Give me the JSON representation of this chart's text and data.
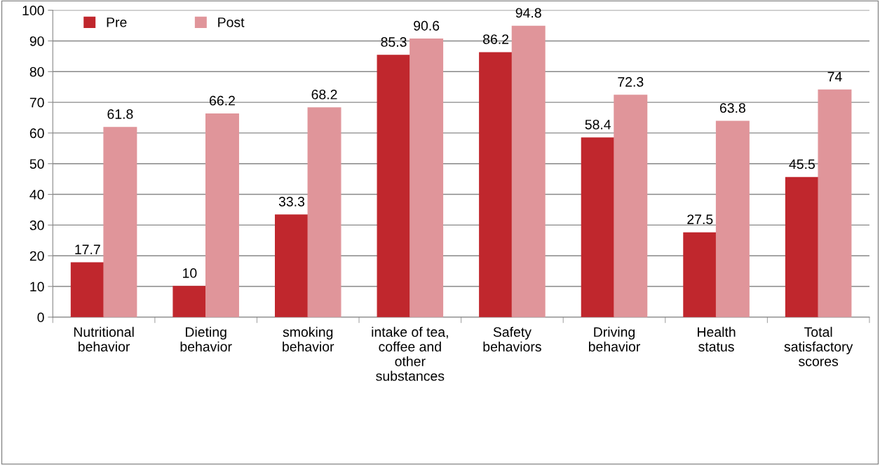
{
  "chart_data": {
    "type": "bar",
    "categories": [
      "Nutritional\nbehavior",
      "Dieting\nbehavior",
      "smoking\nbehavior",
      "intake of tea,\ncoffee and\nother\nsubstances",
      "Safety\nbehaviors",
      "Driving\nbehavior",
      "Health\nstatus",
      "Total\nsatisfactory\nscores"
    ],
    "series": [
      {
        "name": "Pre",
        "color": "#c0272d",
        "values": [
          17.7,
          10,
          33.3,
          85.3,
          86.2,
          58.4,
          27.5,
          45.5
        ]
      },
      {
        "name": "Post",
        "color": "#e0959a",
        "values": [
          61.8,
          66.2,
          68.2,
          90.6,
          94.8,
          72.3,
          63.8,
          74
        ]
      }
    ],
    "ylim": [
      0,
      100
    ],
    "yticks": [
      0,
      10,
      20,
      30,
      40,
      50,
      60,
      70,
      80,
      90,
      100
    ],
    "grid": "y",
    "legend": "top left",
    "data_labels": true
  }
}
